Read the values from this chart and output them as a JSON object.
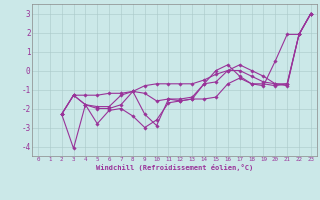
{
  "xlabel": "Windchill (Refroidissement éolien,°C)",
  "background_color": "#cbe8e8",
  "plot_bg_color": "#cbe8e8",
  "line_color": "#993399",
  "xlim": [
    -0.5,
    23.5
  ],
  "ylim": [
    -4.5,
    3.5
  ],
  "yticks": [
    -4,
    -3,
    -2,
    -1,
    0,
    1,
    2,
    3
  ],
  "xticks": [
    0,
    1,
    2,
    3,
    4,
    5,
    6,
    7,
    8,
    9,
    10,
    11,
    12,
    13,
    14,
    15,
    16,
    17,
    18,
    19,
    20,
    21,
    22,
    23
  ],
  "s1_x": [
    2,
    3,
    4,
    5,
    6,
    7,
    8,
    9,
    10,
    11,
    12,
    13,
    14,
    15,
    16,
    17,
    18,
    19,
    20,
    21,
    22,
    23
  ],
  "s1_y": [
    -2.3,
    -1.3,
    -1.3,
    -1.3,
    -1.2,
    -1.2,
    -1.1,
    -0.8,
    -0.7,
    -0.7,
    -0.7,
    -0.7,
    -0.5,
    -0.2,
    0.0,
    0.3,
    0.0,
    -0.3,
    -0.7,
    -0.8,
    1.9,
    3.0
  ],
  "s2_x": [
    2,
    3,
    4,
    5,
    6,
    7,
    8,
    9,
    10,
    11,
    12,
    13,
    14,
    15,
    16,
    17,
    18,
    19,
    20,
    21,
    22,
    23
  ],
  "s2_y": [
    -2.3,
    -1.3,
    -1.8,
    -1.9,
    -1.9,
    -1.3,
    -1.1,
    -1.2,
    -1.6,
    -1.5,
    -1.6,
    -1.5,
    -0.7,
    -0.6,
    0.0,
    0.0,
    -0.3,
    -0.6,
    -0.7,
    -0.7,
    1.9,
    3.0
  ],
  "s3_x": [
    2,
    3,
    4,
    5,
    6,
    7,
    8,
    9,
    10,
    11,
    12,
    13,
    14,
    15,
    16,
    17,
    18,
    19,
    20,
    21,
    22,
    23
  ],
  "s3_y": [
    -2.3,
    -4.1,
    -1.8,
    -2.8,
    -2.1,
    -2.0,
    -2.4,
    -3.0,
    -2.6,
    -1.7,
    -1.6,
    -1.5,
    -1.5,
    -1.4,
    -0.7,
    -0.4,
    -0.7,
    -0.8,
    0.5,
    1.9,
    1.9,
    3.0
  ],
  "s4_x": [
    2,
    3,
    4,
    5,
    6,
    7,
    8,
    9,
    10,
    11,
    12,
    13,
    14,
    15,
    16,
    17,
    18,
    19,
    20,
    21,
    22,
    23
  ],
  "s4_y": [
    -2.3,
    -1.3,
    -1.8,
    -2.0,
    -2.0,
    -1.8,
    -1.1,
    -2.3,
    -2.9,
    -1.5,
    -1.5,
    -1.4,
    -0.7,
    0.0,
    0.3,
    -0.3,
    -0.7,
    -0.7,
    -0.8,
    -0.7,
    1.9,
    3.0
  ]
}
